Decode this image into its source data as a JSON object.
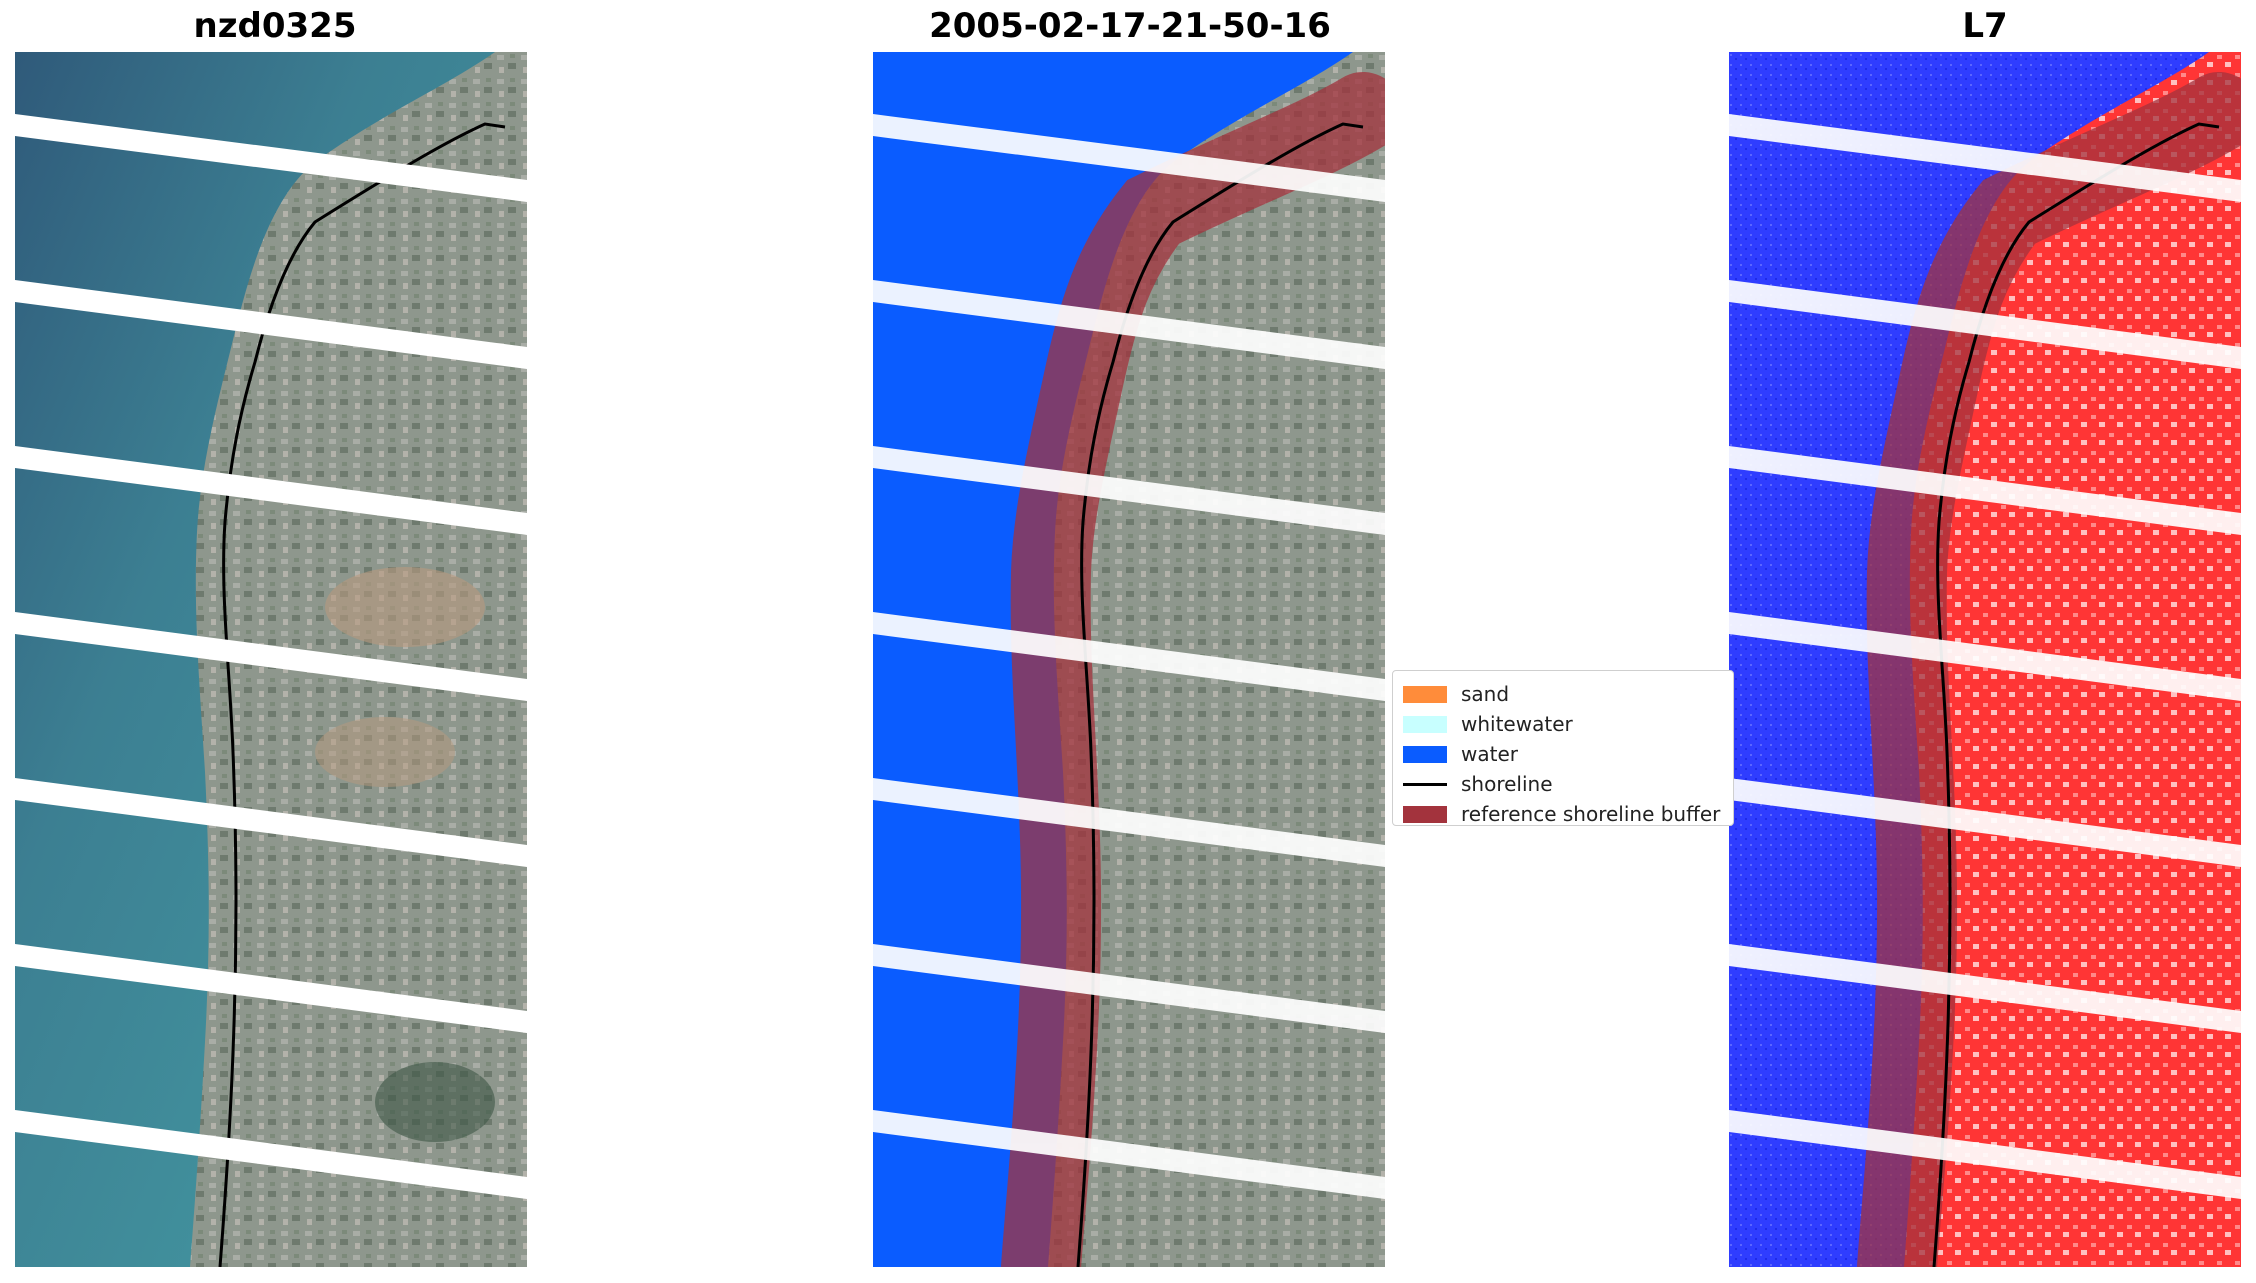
{
  "panels": [
    {
      "title": "nzd0325"
    },
    {
      "title": "2005-02-17-21-50-16"
    },
    {
      "title": "L7"
    }
  ],
  "legend": [
    {
      "label": "sand",
      "kind": "patch",
      "color": "#ff8c3a"
    },
    {
      "label": "whitewater",
      "kind": "patch",
      "color": "#c8ffff"
    },
    {
      "label": "water",
      "kind": "patch",
      "color": "#0a5cff"
    },
    {
      "label": "shoreline",
      "kind": "line",
      "color": "#000000"
    },
    {
      "label": "reference shoreline buffer",
      "kind": "patch",
      "color": "#a3333d"
    }
  ],
  "colors": {
    "sea_rgb": "#3f8c95",
    "land_rgb": "#8f9a8e",
    "classified_water": "#0a5cff",
    "index_water": "#2f3dff",
    "index_land": "#ff2a2a",
    "buffer": "#a3333d"
  }
}
